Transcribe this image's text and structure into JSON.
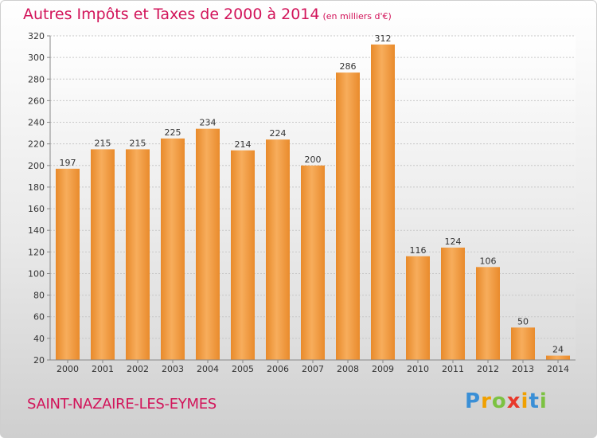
{
  "title": "Autres Impôts et Taxes de 2000 à 2014",
  "title_unit": "(en milliers d'€)",
  "location": "SAINT-NAZAIRE-LES-EYMES",
  "logo": {
    "letters": [
      "P",
      "r",
      "o",
      "x",
      "i",
      "t",
      "i"
    ],
    "colors": [
      "#3a8fd6",
      "#f0a000",
      "#7cc242",
      "#e8382a",
      "#f0a000",
      "#3a8fd6",
      "#7cc242"
    ]
  },
  "colors": {
    "bar": "#f09a3c",
    "bar_light": "#f7b063",
    "accent": "#d2145a"
  },
  "chart_data": {
    "type": "bar",
    "title": "Autres Impôts et Taxes de 2000 à 2014",
    "categories": [
      "2000",
      "2001",
      "2002",
      "2003",
      "2004",
      "2005",
      "2006",
      "2007",
      "2008",
      "2009",
      "2010",
      "2011",
      "2012",
      "2013",
      "2014"
    ],
    "values": [
      197,
      215,
      215,
      225,
      234,
      214,
      224,
      200,
      286,
      312,
      116,
      124,
      106,
      50,
      24
    ],
    "ylim": [
      20,
      320
    ],
    "yticks": [
      20,
      40,
      60,
      80,
      100,
      120,
      140,
      160,
      180,
      200,
      220,
      240,
      260,
      280,
      300,
      320
    ],
    "grid": true,
    "xlabel": "",
    "ylabel": ""
  }
}
